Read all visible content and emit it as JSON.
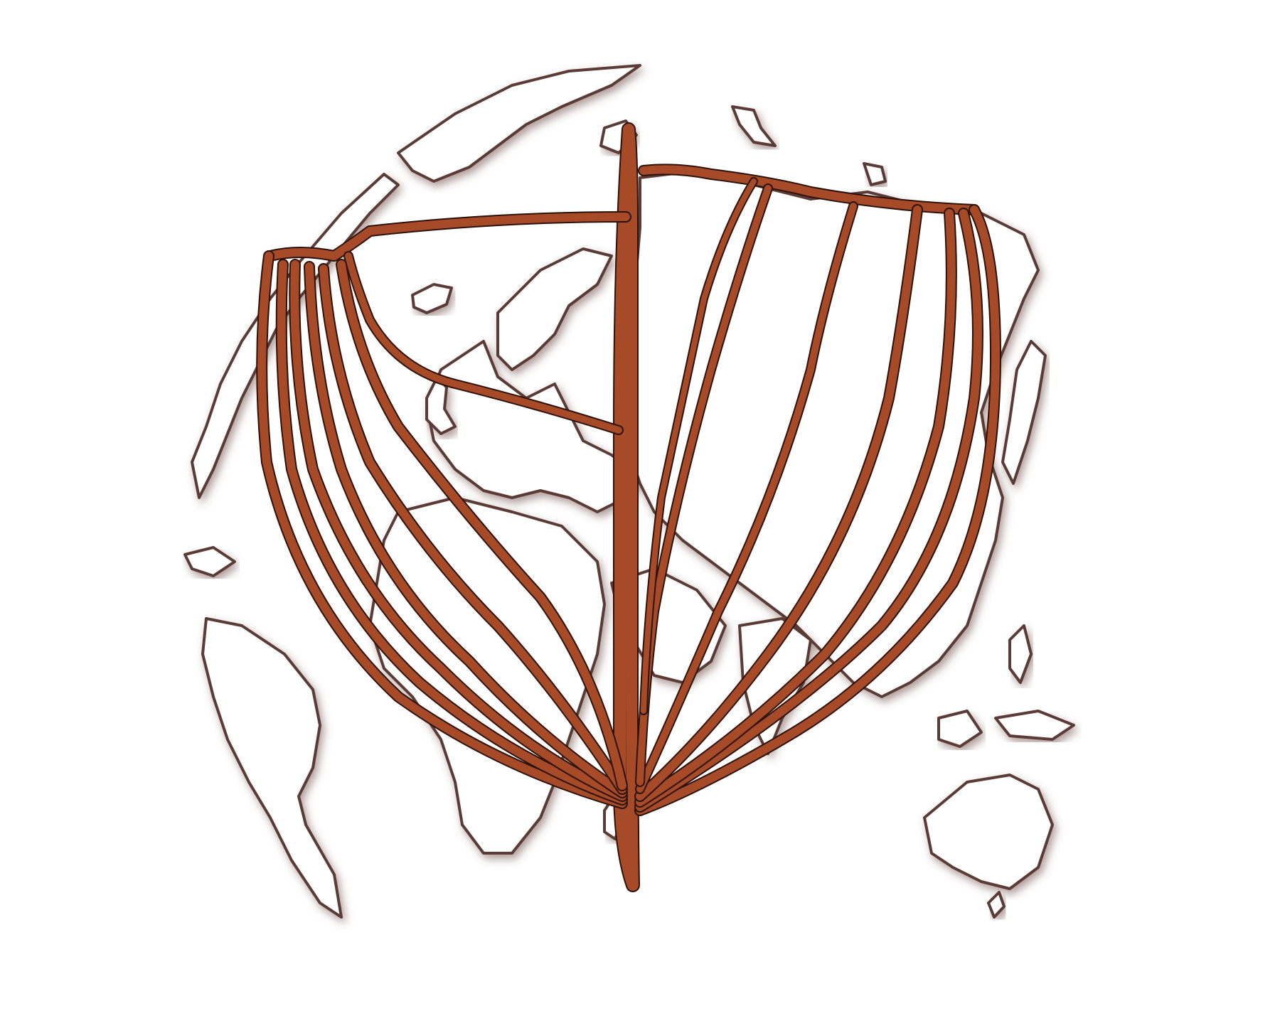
{
  "illustration": {
    "subject": "boat-hull-frame-over-globe",
    "colors": {
      "background": "#ffffff",
      "hull_wood": "#a64a28",
      "hull_outline": "#2b120a",
      "land_outline": "#5a3b34",
      "land_shadow": "#6b4a43"
    },
    "icons": [
      "globe-icon",
      "boat-hull-icon"
    ]
  }
}
